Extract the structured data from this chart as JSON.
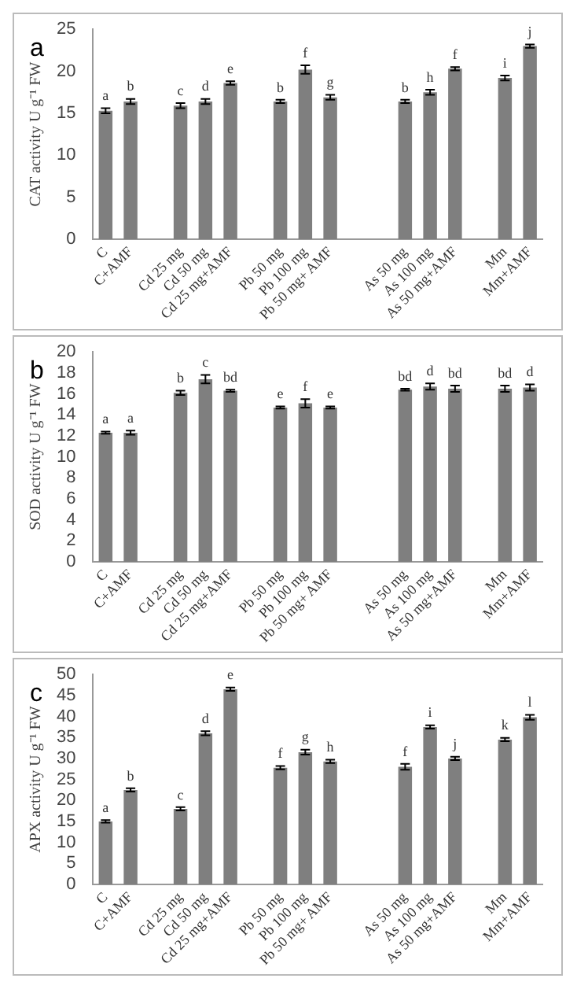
{
  "chart_data": [
    {
      "type": "bar",
      "title": "a",
      "ylabel": "CAT activity U g⁻¹ FW",
      "categories": [
        "C",
        "C+AMF",
        null,
        "Cd 25 mg",
        "Cd 50 mg",
        "Cd 25 mg+AMF",
        null,
        "Pb 50 mg",
        "Pb 100 mg",
        "Pb 50 mg+ AMF",
        null,
        null,
        "As 50 mg",
        "As 100 mg",
        "As 50 mg+AMF",
        null,
        "Mm",
        "Mm+AMF"
      ],
      "values": [
        15.3,
        16.4,
        null,
        15.9,
        16.4,
        18.6,
        null,
        16.4,
        20.2,
        16.9,
        null,
        null,
        16.4,
        17.5,
        20.3,
        null,
        19.2,
        23.0
      ],
      "errors": [
        0.3,
        0.3,
        null,
        0.3,
        0.3,
        0.2,
        null,
        0.2,
        0.5,
        0.3,
        null,
        null,
        0.2,
        0.3,
        0.2,
        null,
        0.3,
        0.2
      ],
      "color": "#7f7f7f",
      "ylim": [
        0,
        25
      ],
      "yticks": [
        0,
        5,
        10,
        15,
        20,
        25
      ],
      "grid": false,
      "annotations": [
        {
          "text": "a",
          "x": "C",
          "y": 15.6
        },
        {
          "text": "b",
          "x": "C+AMF",
          "y": 16.7
        },
        {
          "text": "c",
          "x": "Cd 25 mg",
          "y": 16.2
        },
        {
          "text": "d",
          "x": "Cd 50 mg",
          "y": 16.7
        },
        {
          "text": "e",
          "x": "Cd 25 mg+AMF",
          "y": 18.8
        },
        {
          "text": "b",
          "x": "Pb 50 mg",
          "y": 16.6
        },
        {
          "text": "f",
          "x": "Pb 100 mg",
          "y": 20.7
        },
        {
          "text": "g",
          "x": "Pb 50 mg+ AMF",
          "y": 17.2
        },
        {
          "text": "b",
          "x": "As 50 mg",
          "y": 16.6
        },
        {
          "text": "h",
          "x": "As 100 mg",
          "y": 17.8
        },
        {
          "text": "f",
          "x": "As 50 mg+AMF",
          "y": 20.5
        },
        {
          "text": "i",
          "x": "Mm",
          "y": 19.5
        },
        {
          "text": "j",
          "x": "Mm+AMF",
          "y": 23.2
        }
      ]
    },
    {
      "type": "bar",
      "title": "b",
      "ylabel": "SOD activity U g⁻¹ FW",
      "categories": [
        "C",
        "C+AMF",
        null,
        "Cd 25 mg",
        "Cd 50 mg",
        "Cd 25 mg+AMF",
        null,
        "Pb 50 mg",
        "Pb 100 mg",
        "Pb 50 mg+ AMF",
        null,
        null,
        "As 50 mg",
        "As 100 mg",
        "As 50 mg+AMF",
        null,
        "Mm",
        "Mm+AMF"
      ],
      "values": [
        12.3,
        12.3,
        null,
        16.1,
        17.4,
        16.3,
        null,
        14.7,
        15.1,
        14.7,
        null,
        null,
        16.4,
        16.7,
        16.5,
        null,
        16.5,
        16.6
      ],
      "errors": [
        0.1,
        0.2,
        null,
        0.2,
        0.4,
        0.1,
        null,
        0.1,
        0.4,
        0.1,
        null,
        null,
        0.1,
        0.3,
        0.3,
        null,
        0.3,
        0.3
      ],
      "color": "#7f7f7f",
      "ylim": [
        0,
        20
      ],
      "yticks": [
        0,
        2,
        4,
        6,
        8,
        10,
        12,
        14,
        16,
        18,
        20
      ],
      "grid": false,
      "annotations": [
        {
          "text": "a",
          "x": "C",
          "y": 12.4
        },
        {
          "text": "a",
          "x": "C+AMF",
          "y": 12.5
        },
        {
          "text": "b",
          "x": "Cd 25 mg",
          "y": 16.3
        },
        {
          "text": "c",
          "x": "Cd 50 mg",
          "y": 17.8
        },
        {
          "text": "bd",
          "x": "Cd 25 mg+AMF",
          "y": 16.4
        },
        {
          "text": "e",
          "x": "Pb 50 mg",
          "y": 14.8
        },
        {
          "text": "f",
          "x": "Pb 100 mg",
          "y": 15.5
        },
        {
          "text": "e",
          "x": "Pb 50 mg+ AMF",
          "y": 14.8
        },
        {
          "text": "bd",
          "x": "As 50 mg",
          "y": 16.5
        },
        {
          "text": "d",
          "x": "As 100 mg",
          "y": 17.0
        },
        {
          "text": "bd",
          "x": "As 50 mg+AMF",
          "y": 16.8
        },
        {
          "text": "bd",
          "x": "Mm",
          "y": 16.8
        },
        {
          "text": "d",
          "x": "Mm+AMF",
          "y": 16.9
        }
      ]
    },
    {
      "type": "bar",
      "title": "c",
      "ylabel": "APX activity U g⁻¹ FW",
      "categories": [
        "C",
        "C+AMF",
        null,
        "Cd 25 mg",
        "Cd 50 mg",
        "Cd 25 mg+AMF",
        null,
        "Pb 50 mg",
        "Pb 100 mg",
        "Pb 50 mg+ AMF",
        null,
        null,
        "As 50 mg",
        "As 100 mg",
        "As 50 mg+AMF",
        null,
        "Mm",
        "Mm+AMF"
      ],
      "values": [
        15.0,
        22.5,
        null,
        18.0,
        36.0,
        46.5,
        null,
        27.8,
        31.5,
        29.3,
        null,
        null,
        28.0,
        37.5,
        30.0,
        null,
        34.5,
        39.8
      ],
      "errors": [
        0.3,
        0.4,
        null,
        0.4,
        0.5,
        0.4,
        null,
        0.4,
        0.6,
        0.4,
        null,
        null,
        0.7,
        0.4,
        0.4,
        null,
        0.4,
        0.6
      ],
      "color": "#7f7f7f",
      "ylim": [
        0,
        50
      ],
      "yticks": [
        0,
        5,
        10,
        15,
        20,
        25,
        30,
        35,
        40,
        45,
        50
      ],
      "grid": false,
      "annotations": [
        {
          "text": "a",
          "x": "C",
          "y": 15.3
        },
        {
          "text": "b",
          "x": "C+AMF",
          "y": 22.9
        },
        {
          "text": "c",
          "x": "Cd 25 mg",
          "y": 18.4
        },
        {
          "text": "d",
          "x": "Cd 50 mg",
          "y": 36.5
        },
        {
          "text": "e",
          "x": "Cd 25 mg+AMF",
          "y": 46.9
        },
        {
          "text": "f",
          "x": "Pb 50 mg",
          "y": 28.2
        },
        {
          "text": "g",
          "x": "Pb 100 mg",
          "y": 32.1
        },
        {
          "text": "h",
          "x": "Pb 50 mg+ AMF",
          "y": 29.7
        },
        {
          "text": "f",
          "x": "As 50 mg",
          "y": 28.7
        },
        {
          "text": "i",
          "x": "As 100 mg",
          "y": 37.9
        },
        {
          "text": "j",
          "x": "As 50 mg+AMF",
          "y": 30.4
        },
        {
          "text": "k",
          "x": "Mm",
          "y": 34.9
        },
        {
          "text": "l",
          "x": "Mm+AMF",
          "y": 40.4
        }
      ]
    }
  ]
}
